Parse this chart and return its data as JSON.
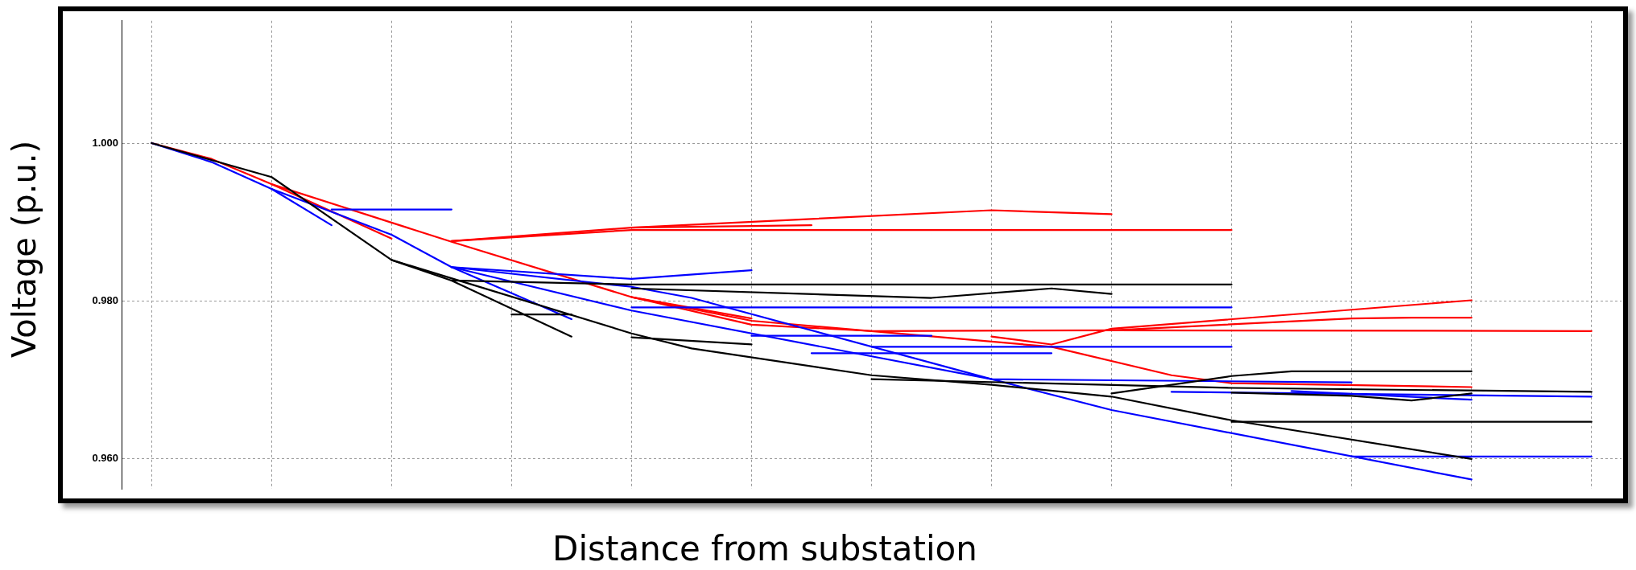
{
  "chart_data": {
    "type": "line",
    "xlabel": "Distance from substation",
    "ylabel": "Voltage (p.u.)",
    "categories": [
      null,
      null,
      null,
      null,
      null,
      null,
      null,
      null,
      null,
      null,
      null,
      null,
      null,
      null,
      null,
      null,
      null,
      null,
      null,
      null,
      null,
      null,
      null,
      null,
      null
    ],
    "ylim": [
      0.9562,
      1.0155
    ],
    "yticks": [
      {
        "value": 0.96,
        "label": "0.960"
      },
      {
        "value": 0.98,
        "label": "0.980"
      },
      {
        "value": 1,
        "label": "1.000"
      }
    ],
    "grid": true,
    "tick_labels": "y",
    "marker": "none",
    "series": [
      {
        "color": "#000000",
        "values": [
          1,
          null,
          0.9957,
          null,
          0.9852,
          null,
          null,
          null,
          0.9759,
          0.974,
          null,
          null,
          0.9706,
          null,
          0.9694,
          null,
          0.9679,
          null,
          0.9649,
          null,
          null,
          null,
          0.96,
          null,
          null
        ]
      },
      {
        "color": "#000000",
        "values": [
          null,
          null,
          null,
          null,
          0.9852,
          0.9826,
          null,
          0.9755,
          null,
          null,
          null,
          null,
          null,
          null,
          null,
          null,
          null,
          null,
          null,
          null,
          null,
          null,
          null,
          null,
          null
        ]
      },
      {
        "color": "#000000",
        "values": [
          null,
          null,
          null,
          null,
          null,
          0.9826,
          null,
          null,
          0.9821,
          null,
          null,
          null,
          null,
          null,
          null,
          null,
          null,
          null,
          0.9821,
          null,
          null,
          null,
          null,
          null,
          null
        ]
      },
      {
        "color": "#000000",
        "values": [
          null,
          null,
          null,
          null,
          null,
          null,
          null,
          null,
          0.9816,
          null,
          null,
          null,
          null,
          0.9804,
          null,
          0.9816,
          0.9809,
          null,
          null,
          null,
          null,
          null,
          null,
          null,
          null
        ]
      },
      {
        "color": "#000000",
        "values": [
          null,
          null,
          null,
          null,
          null,
          null,
          0.9783,
          0.9783,
          null,
          null,
          null,
          null,
          null,
          null,
          null,
          null,
          null,
          null,
          null,
          null,
          null,
          null,
          null,
          null,
          null
        ]
      },
      {
        "color": "#000000",
        "values": [
          null,
          null,
          null,
          null,
          null,
          null,
          null,
          null,
          0.9754,
          null,
          0.9745,
          null,
          null,
          null,
          null,
          null,
          null,
          null,
          null,
          null,
          null,
          null,
          null,
          null,
          null
        ]
      },
      {
        "color": "#000000",
        "values": [
          null,
          null,
          null,
          null,
          null,
          null,
          null,
          null,
          null,
          null,
          null,
          null,
          0.9701,
          null,
          null,
          null,
          null,
          null,
          0.969,
          null,
          null,
          null,
          null,
          null,
          0.9685
        ]
      },
      {
        "color": "#000000",
        "values": [
          null,
          null,
          null,
          null,
          null,
          null,
          null,
          null,
          null,
          null,
          null,
          null,
          null,
          null,
          null,
          null,
          0.9683,
          null,
          0.9705,
          0.9711,
          null,
          null,
          0.9711,
          null,
          null
        ]
      },
      {
        "color": "#000000",
        "values": [
          null,
          null,
          null,
          null,
          null,
          null,
          null,
          null,
          null,
          null,
          null,
          null,
          null,
          null,
          null,
          null,
          null,
          null,
          0.9684,
          null,
          0.968,
          0.9674,
          0.9683,
          null,
          null
        ]
      },
      {
        "color": "#000000",
        "values": [
          null,
          null,
          null,
          null,
          null,
          null,
          null,
          null,
          null,
          null,
          null,
          null,
          null,
          null,
          null,
          null,
          null,
          null,
          0.9647,
          null,
          null,
          null,
          null,
          null,
          0.9647
        ]
      },
      {
        "color": "#0000ff",
        "values": [
          1,
          0.9976,
          0.9942,
          null,
          0.9884,
          0.9843,
          null,
          null,
          0.9788,
          null,
          null,
          null,
          null,
          null,
          0.9701,
          null,
          0.9662,
          null,
          null,
          null,
          null,
          null,
          0.9574,
          null,
          null
        ]
      },
      {
        "color": "#0000ff",
        "values": [
          null,
          null,
          null,
          null,
          null,
          0.9843,
          null,
          null,
          0.9828,
          null,
          0.9839,
          null,
          null,
          null,
          null,
          null,
          null,
          null,
          null,
          null,
          null,
          null,
          null,
          null,
          null
        ]
      },
      {
        "color": "#0000ff",
        "values": [
          null,
          null,
          null,
          null,
          null,
          0.9843,
          null,
          null,
          0.9818,
          0.9804,
          null,
          null,
          null,
          null,
          0.9701,
          null,
          null,
          null,
          null,
          null,
          0.9697,
          null,
          null,
          null,
          null
        ]
      },
      {
        "color": "#0000ff",
        "values": [
          null,
          null,
          null,
          null,
          null,
          0.9843,
          null,
          0.9777,
          null,
          null,
          null,
          null,
          null,
          null,
          null,
          null,
          null,
          null,
          null,
          null,
          null,
          null,
          null,
          null,
          null
        ]
      },
      {
        "color": "#0000ff",
        "values": [
          null,
          null,
          null,
          null,
          null,
          null,
          null,
          null,
          0.9792,
          null,
          null,
          null,
          null,
          null,
          null,
          null,
          null,
          null,
          0.9792,
          null,
          null,
          null,
          null,
          null,
          null
        ]
      },
      {
        "color": "#0000ff",
        "values": [
          null,
          null,
          null,
          null,
          null,
          null,
          null,
          null,
          null,
          null,
          0.9756,
          null,
          null,
          0.9756,
          null,
          null,
          null,
          null,
          null,
          null,
          null,
          null,
          null,
          null,
          null
        ]
      },
      {
        "color": "#0000ff",
        "values": [
          null,
          null,
          null,
          null,
          null,
          null,
          null,
          null,
          null,
          null,
          null,
          null,
          0.9742,
          null,
          null,
          null,
          null,
          null,
          0.9742,
          null,
          null,
          null,
          null,
          null,
          null
        ]
      },
      {
        "color": "#0000ff",
        "values": [
          null,
          null,
          null,
          null,
          null,
          null,
          null,
          null,
          null,
          null,
          null,
          0.9734,
          null,
          null,
          null,
          0.9734,
          null,
          null,
          null,
          null,
          null,
          null,
          null,
          null,
          null
        ]
      },
      {
        "color": "#0000ff",
        "values": [
          null,
          null,
          null,
          null,
          null,
          null,
          null,
          null,
          null,
          null,
          null,
          null,
          null,
          null,
          null,
          null,
          null,
          0.9685,
          null,
          null,
          null,
          null,
          null,
          null,
          0.9679
        ]
      },
      {
        "color": "#0000ff",
        "values": [
          null,
          null,
          null,
          null,
          null,
          null,
          null,
          null,
          null,
          null,
          null,
          null,
          null,
          null,
          null,
          null,
          null,
          null,
          null,
          0.9686,
          null,
          null,
          0.9675,
          null,
          null
        ]
      },
      {
        "color": "#0000ff",
        "values": [
          null,
          null,
          null,
          null,
          null,
          null,
          null,
          null,
          null,
          null,
          null,
          null,
          null,
          null,
          null,
          null,
          null,
          null,
          null,
          null,
          0.9603,
          null,
          null,
          null,
          0.9603
        ]
      },
      {
        "color": "#0000ff",
        "values": [
          null,
          null,
          null,
          0.9916,
          null,
          0.9916,
          null,
          null,
          null,
          null,
          null,
          null,
          null,
          null,
          null,
          null,
          null,
          null,
          null,
          null,
          null,
          null,
          null,
          null,
          null
        ]
      },
      {
        "color": "#0000ff",
        "values": [
          null,
          null,
          0.9942,
          0.9896,
          null,
          null,
          null,
          null,
          null,
          null,
          null,
          null,
          null,
          null,
          null,
          null,
          null,
          null,
          null,
          null,
          null,
          null,
          null,
          null,
          null
        ]
      },
      {
        "color": "#ff0000",
        "values": [
          1,
          0.998,
          0.9948,
          null,
          null,
          0.9875,
          null,
          null,
          0.9805,
          null,
          0.9775,
          null,
          null,
          null,
          null,
          0.9742,
          null,
          0.9706,
          0.9696,
          null,
          null,
          null,
          0.9691,
          null,
          null
        ]
      },
      {
        "color": "#ff0000",
        "values": [
          null,
          null,
          null,
          null,
          null,
          0.9876,
          null,
          null,
          0.9893,
          null,
          null,
          null,
          null,
          null,
          0.9915,
          null,
          0.991,
          null,
          null,
          null,
          null,
          null,
          null,
          null,
          null
        ]
      },
      {
        "color": "#ff0000",
        "values": [
          null,
          null,
          null,
          null,
          null,
          0.9876,
          null,
          null,
          0.989,
          null,
          null,
          null,
          null,
          null,
          null,
          null,
          null,
          null,
          0.989,
          null,
          null,
          null,
          null,
          null,
          null
        ]
      },
      {
        "color": "#ff0000",
        "values": [
          null,
          null,
          null,
          null,
          null,
          null,
          null,
          null,
          0.9893,
          null,
          null,
          0.9896,
          null,
          null,
          null,
          null,
          null,
          null,
          null,
          null,
          null,
          null,
          null,
          null,
          null
        ]
      },
      {
        "color": "#ff0000",
        "values": [
          null,
          null,
          0.9948,
          null,
          0.9879,
          null,
          null,
          null,
          null,
          null,
          null,
          null,
          null,
          null,
          null,
          null,
          null,
          null,
          null,
          null,
          null,
          null,
          null,
          null,
          null
        ]
      },
      {
        "color": "#ff0000",
        "values": [
          null,
          null,
          null,
          null,
          null,
          null,
          null,
          null,
          0.9805,
          null,
          0.977,
          null,
          0.9762,
          null,
          null,
          null,
          0.9763,
          null,
          null,
          null,
          null,
          null,
          null,
          null,
          0.9762
        ]
      },
      {
        "color": "#ff0000",
        "values": [
          null,
          null,
          null,
          null,
          null,
          null,
          null,
          null,
          0.9805,
          null,
          0.9778,
          null,
          null,
          null,
          null,
          null,
          null,
          null,
          null,
          null,
          null,
          null,
          null,
          null,
          null
        ]
      },
      {
        "color": "#ff0000",
        "values": [
          null,
          null,
          null,
          null,
          null,
          null,
          null,
          null,
          null,
          null,
          null,
          null,
          null,
          null,
          0.9755,
          0.9745,
          0.9765,
          null,
          null,
          null,
          null,
          null,
          0.9801,
          null,
          null
        ]
      },
      {
        "color": "#ff0000",
        "values": [
          null,
          null,
          null,
          null,
          null,
          null,
          null,
          null,
          null,
          null,
          null,
          null,
          null,
          null,
          null,
          null,
          0.9763,
          null,
          null,
          null,
          0.9778,
          0.9779,
          0.9779,
          null,
          null
        ]
      }
    ]
  }
}
